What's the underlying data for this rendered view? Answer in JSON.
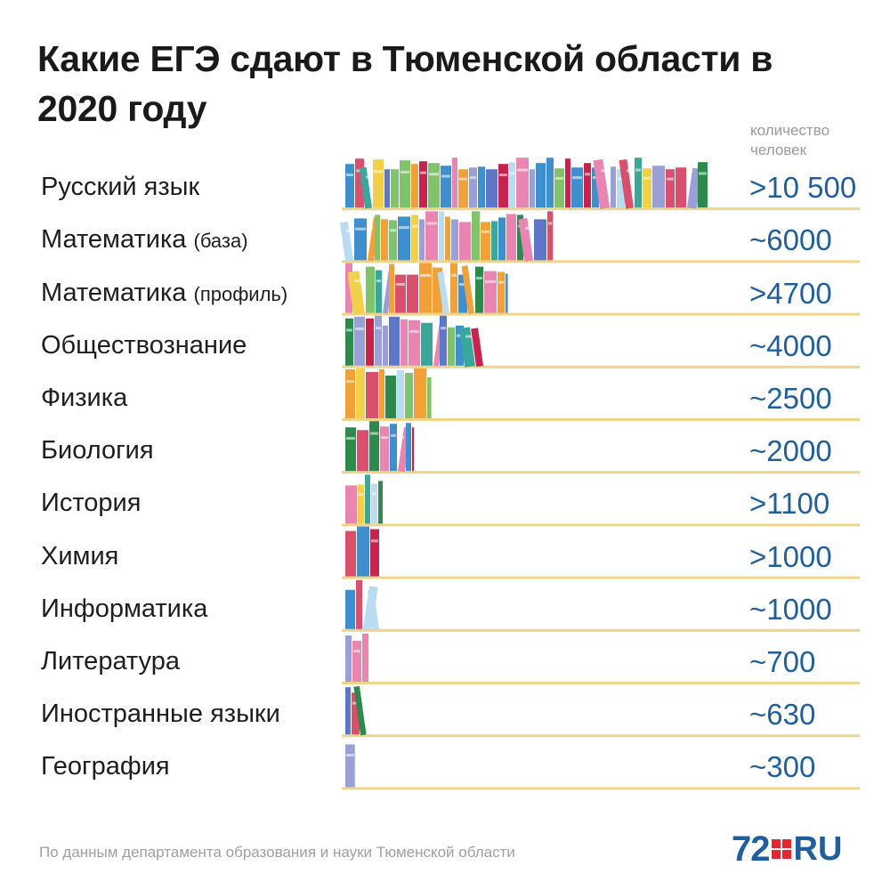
{
  "chart_data": {
    "type": "bar",
    "title": "Какие ЕГЭ сдают в Тюменской области в 2020 году",
    "unit_label": "количество человек",
    "categories": [
      {
        "label": "Русский язык",
        "sub": ""
      },
      {
        "label": "Математика",
        "sub": "(база)"
      },
      {
        "label": "Математика",
        "sub": "(профиль)"
      },
      {
        "label": "Обществознание",
        "sub": ""
      },
      {
        "label": "Физика",
        "sub": ""
      },
      {
        "label": "Биология",
        "sub": ""
      },
      {
        "label": "История",
        "sub": ""
      },
      {
        "label": "Химия",
        "sub": ""
      },
      {
        "label": "Информатика",
        "sub": ""
      },
      {
        "label": "Литература",
        "sub": ""
      },
      {
        "label": "Иностранные языки",
        "sub": ""
      },
      {
        "label": "География",
        "sub": ""
      }
    ],
    "values": [
      10500,
      6000,
      4700,
      4000,
      2500,
      2000,
      1100,
      1000,
      1000,
      700,
      630,
      300
    ],
    "value_labels": [
      ">10 500",
      "~6000",
      ">4700",
      "~4000",
      "~2500",
      "~2000",
      ">1100",
      ">1000",
      "~1000",
      "~700",
      "~630",
      "~300"
    ],
    "xlim": [
      0,
      10500
    ],
    "grid": false
  },
  "footer": {
    "source": "По данным департамента образования и науки Тюменской области",
    "logo_number": "72",
    "logo_domain": "RU"
  },
  "colors": {
    "shelf": "#efd58a",
    "value_text": "#1f5f9e",
    "logo_red": "#e3262f",
    "books": [
      "#c8224e",
      "#3f8fcf",
      "#7fc36a",
      "#f1a13a",
      "#e985b0",
      "#9a9fd6",
      "#f3d04a",
      "#3aa79a",
      "#b9dcf2",
      "#2d8a4c",
      "#d94f6e",
      "#5e76c8"
    ]
  }
}
